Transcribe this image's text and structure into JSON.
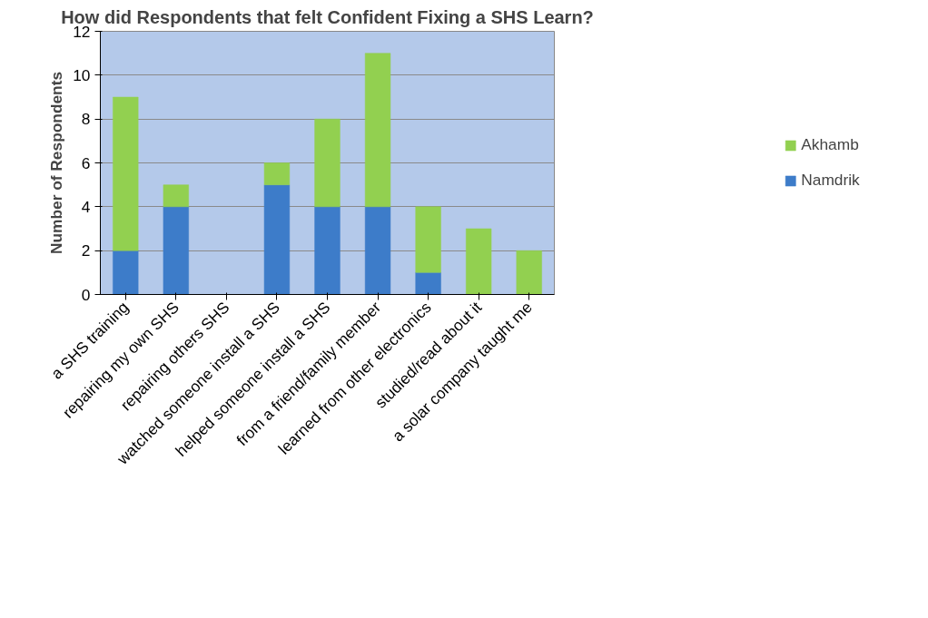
{
  "chart_data": {
    "type": "bar",
    "title": "How did Respondents that felt Confident Fixing a SHS Learn?",
    "ylabel": "Number of Respondents",
    "categories": [
      "a SHS training",
      "repairing my own SHS",
      "repairing others SHS",
      "watched someone install a SHS",
      "helped someone install a SHS",
      "from a friend/family member",
      "learned from other electronics",
      "studied/read about it",
      "a solar company taught me"
    ],
    "series": [
      {
        "name": "Namdrik",
        "color": "#3d7cc9",
        "values": [
          2,
          4,
          0,
          5,
          4,
          4,
          1,
          0,
          0
        ]
      },
      {
        "name": "Akhamb",
        "color": "#92d050",
        "values": [
          7,
          1,
          0,
          1,
          4,
          7,
          3,
          3,
          2
        ]
      }
    ],
    "stacked": true,
    "ylim": [
      0,
      12
    ],
    "yticks": [
      0,
      2,
      4,
      6,
      8,
      10,
      12
    ],
    "grid": "y",
    "legend": "right"
  }
}
